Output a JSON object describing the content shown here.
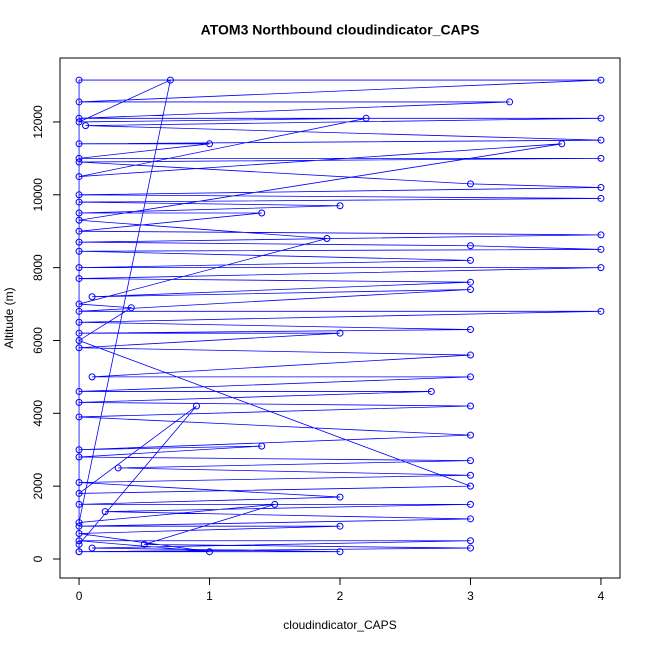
{
  "chart_data": {
    "type": "line",
    "title": "ATOM3 Northbound cloudindicator_CAPS",
    "x_label": "cloudindicator_CAPS",
    "y_label": "Altitude (m)",
    "color": "#0000ff",
    "xlim": [
      -0.146,
      4.146
    ],
    "ylim": [
      -522,
      13756
    ],
    "xticks": [
      0,
      1,
      2,
      3,
      4
    ],
    "yticks": [
      0,
      2000,
      4000,
      6000,
      8000,
      10000,
      12000
    ],
    "x": [
      0,
      0,
      4,
      0,
      3.3,
      0,
      4,
      0.05,
      4,
      0,
      1,
      0,
      4,
      0,
      3,
      4,
      0,
      4,
      0,
      2,
      0,
      1.4,
      0,
      4,
      0,
      3,
      4,
      0,
      3,
      0,
      4,
      0,
      3,
      0.1,
      3,
      0,
      4,
      0,
      3,
      0,
      2,
      0,
      3,
      0.1,
      3,
      0,
      2.7,
      0,
      3,
      0,
      3,
      0,
      1.4,
      0,
      3,
      0.3,
      3,
      0,
      2,
      0,
      3,
      0.2,
      3,
      0,
      2,
      0,
      1,
      0,
      3,
      0.1,
      2,
      0,
      3,
      0.5,
      1.5,
      0,
      0.7,
      0,
      2.2,
      0,
      3.7,
      0,
      1.9,
      0,
      0.4,
      0,
      3,
      0,
      0.9,
      0
    ],
    "values": [
      200,
      13150,
      13150,
      12550,
      12550,
      12100,
      12100,
      11900,
      11500,
      11400,
      11400,
      11000,
      11000,
      10900,
      10300,
      10200,
      10000,
      9900,
      9800,
      9700,
      9500,
      9500,
      9000,
      8900,
      8700,
      8600,
      8500,
      8450,
      8200,
      8000,
      8000,
      7700,
      7600,
      7200,
      7400,
      6800,
      6800,
      6500,
      6300,
      6200,
      6200,
      5800,
      5600,
      5000,
      5000,
      4600,
      4600,
      4300,
      4200,
      3900,
      3400,
      3000,
      3100,
      2800,
      2700,
      2500,
      2300,
      2100,
      1700,
      1500,
      1500,
      1300,
      1100,
      900,
      900,
      700,
      200,
      500,
      500,
      300,
      200,
      200,
      300,
      400,
      1500,
      1000,
      13150,
      12000,
      12100,
      10500,
      11400,
      9300,
      8800,
      7000,
      6900,
      6000,
      2000,
      1800,
      4200,
      400
    ]
  }
}
